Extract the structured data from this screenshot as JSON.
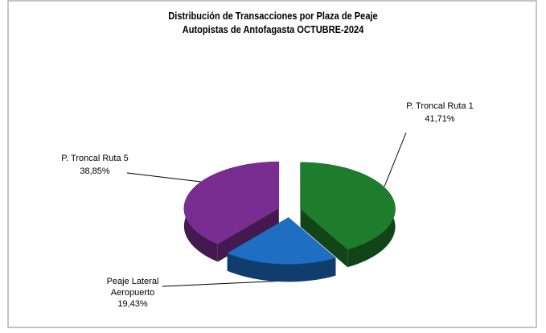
{
  "chart_data": {
    "type": "pie",
    "title": "Distribución de Transacciones por Plaza de Peaje",
    "subtitle": "Autopistas de Antofagasta OCTUBRE-2024",
    "categories": [
      "P. Troncal Ruta 1",
      "Peaje Lateral Aeropuerto",
      "P. Troncal Ruta 5"
    ],
    "values": [
      41.71,
      19.43,
      38.85
    ],
    "value_labels": [
      "41,71%",
      "19,43%",
      "38,85%"
    ],
    "colors": [
      "#1e7d2c",
      "#1e6fc4",
      "#7a2d90"
    ]
  }
}
